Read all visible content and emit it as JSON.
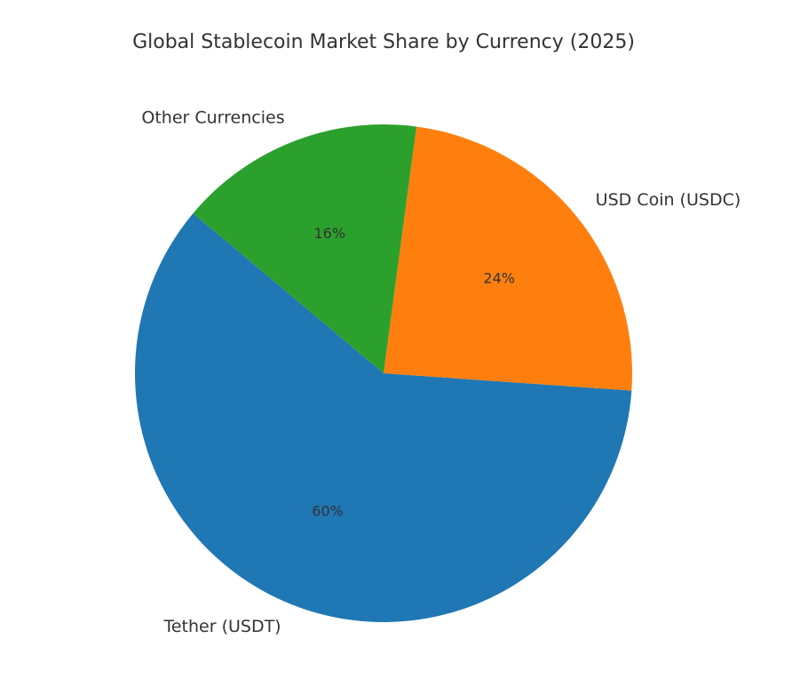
{
  "chart_data": {
    "type": "pie",
    "title": "Global Stablecoin Market Share by Currency (2025)",
    "categories": [
      "Tether (USDT)",
      "USD Coin (USDC)",
      "Other Currencies"
    ],
    "values": [
      60,
      24,
      16
    ],
    "value_labels": [
      "60%",
      "24%",
      "16%"
    ],
    "colors": [
      "#1f77b4",
      "#ff7f0e",
      "#2ca02c"
    ],
    "start_angle": 140,
    "direction": "counterclockwise"
  }
}
